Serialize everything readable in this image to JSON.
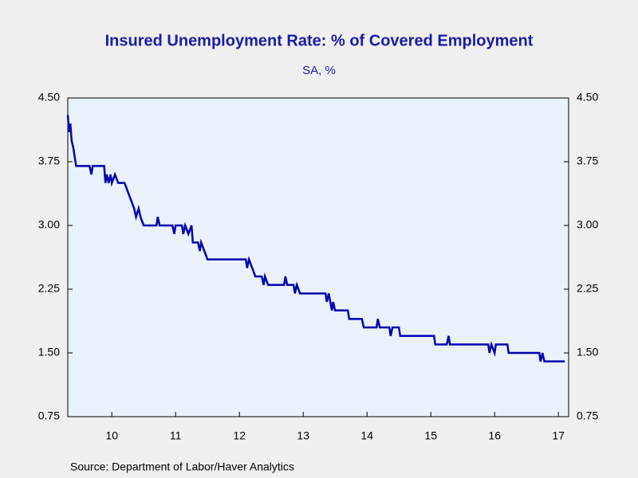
{
  "chart_data": {
    "type": "line",
    "title": "Insured Unemployment Rate: % of Covered Employment",
    "subtitle": "SA, %",
    "source": "Source:  Department of Labor/Haver Analytics",
    "xlim": [
      2009.81,
      2017.66
    ],
    "xticks": [
      {
        "value": 2010.5,
        "label": "10"
      },
      {
        "value": 2011.5,
        "label": "11"
      },
      {
        "value": 2012.5,
        "label": "12"
      },
      {
        "value": 2013.5,
        "label": "13"
      },
      {
        "value": 2014.5,
        "label": "14"
      },
      {
        "value": 2015.5,
        "label": "15"
      },
      {
        "value": 2016.5,
        "label": "16"
      },
      {
        "value": 2017.5,
        "label": "17"
      }
    ],
    "ylim": [
      0.75,
      4.5
    ],
    "yticks": [
      {
        "value": 0.75,
        "label": "0.75"
      },
      {
        "value": 1.5,
        "label": "1.50"
      },
      {
        "value": 2.25,
        "label": "2.25"
      },
      {
        "value": 3,
        "label": "3.00"
      },
      {
        "value": 3.75,
        "label": "3.75"
      },
      {
        "value": 4.5,
        "label": "4.50"
      }
    ],
    "series": [
      {
        "color": "#0000b0",
        "x": [
          2009.81,
          2009.83,
          2009.85,
          2009.87,
          2009.9,
          2009.92,
          2009.94,
          2010.15,
          2010.18,
          2010.2,
          2010.38,
          2010.4,
          2010.42,
          2010.45,
          2010.48,
          2010.5,
          2010.55,
          2010.6,
          2010.7,
          2010.75,
          2010.8,
          2010.85,
          2010.88,
          2010.92,
          2010.95,
          2011.0,
          2011.2,
          2011.22,
          2011.25,
          2011.45,
          2011.48,
          2011.5,
          2011.6,
          2011.62,
          2011.65,
          2011.7,
          2011.75,
          2011.77,
          2011.85,
          2011.88,
          2011.9,
          2011.95,
          2012.0,
          2012.6,
          2012.62,
          2012.65,
          2012.7,
          2012.75,
          2012.85,
          2012.88,
          2012.9,
          2012.95,
          2013.2,
          2013.22,
          2013.25,
          2013.35,
          2013.37,
          2013.4,
          2013.45,
          2013.85,
          2013.87,
          2013.9,
          2013.95,
          2013.97,
          2014.0,
          2014.2,
          2014.22,
          2014.42,
          2014.45,
          2014.65,
          2014.67,
          2014.7,
          2014.85,
          2014.87,
          2014.9,
          2015.0,
          2015.02,
          2015.55,
          2015.57,
          2015.75,
          2015.78,
          2015.8,
          2016.4,
          2016.42,
          2016.45,
          2016.5,
          2016.52,
          2016.7,
          2016.72,
          2017.2,
          2017.22,
          2017.25,
          2017.28,
          2017.6
        ],
        "values": [
          4.3,
          4.1,
          4.2,
          4.0,
          3.9,
          3.8,
          3.7,
          3.7,
          3.6,
          3.7,
          3.7,
          3.5,
          3.6,
          3.5,
          3.6,
          3.5,
          3.6,
          3.5,
          3.5,
          3.4,
          3.3,
          3.2,
          3.1,
          3.2,
          3.1,
          3.0,
          3.0,
          3.1,
          3.0,
          3.0,
          2.9,
          3.0,
          3.0,
          2.9,
          3.0,
          2.9,
          3.0,
          2.8,
          2.8,
          2.7,
          2.8,
          2.7,
          2.6,
          2.6,
          2.5,
          2.6,
          2.5,
          2.4,
          2.4,
          2.3,
          2.4,
          2.3,
          2.3,
          2.4,
          2.3,
          2.3,
          2.2,
          2.3,
          2.2,
          2.2,
          2.1,
          2.2,
          2.0,
          2.1,
          2.0,
          2.0,
          1.9,
          1.9,
          1.8,
          1.8,
          1.9,
          1.8,
          1.8,
          1.7,
          1.8,
          1.8,
          1.7,
          1.7,
          1.6,
          1.6,
          1.7,
          1.6,
          1.6,
          1.5,
          1.6,
          1.5,
          1.6,
          1.6,
          1.5,
          1.5,
          1.4,
          1.5,
          1.4,
          1.4
        ]
      }
    ]
  }
}
